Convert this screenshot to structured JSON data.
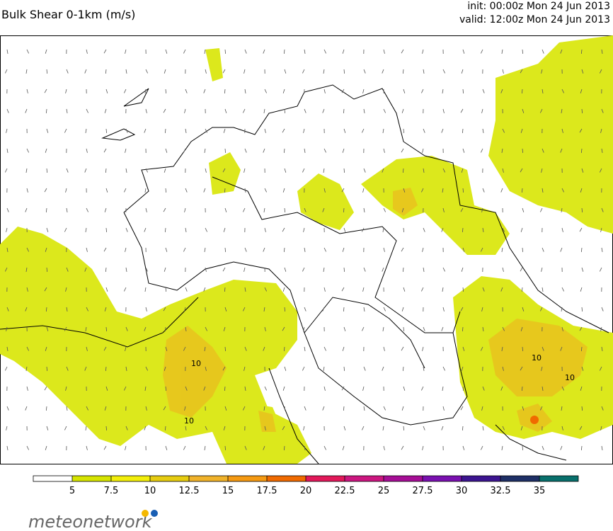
{
  "header": {
    "title": "Bulk Shear 0-1km (m/s)",
    "init": "init: 00:00z Mon 24 Jun 2013",
    "valid": "valid: 12:00z Mon 24 Jun 2013"
  },
  "map": {
    "contour_labels": [
      "10",
      "10",
      "10",
      "10"
    ]
  },
  "colorbar": {
    "ticks": [
      5,
      7.5,
      10,
      12.5,
      15,
      17.5,
      20,
      22.5,
      25,
      27.5,
      30,
      32.5,
      35
    ],
    "colors": [
      "#ffffff",
      "#d6e400",
      "#f2ee0a",
      "#e6cc10",
      "#f0b22a",
      "#f59a12",
      "#f06a00",
      "#e2185a",
      "#cc1680",
      "#a60e96",
      "#7a10b0",
      "#3c1490",
      "#1e2f66",
      "#08706c"
    ]
  },
  "footer": {
    "logo": "meteonetwork"
  }
}
